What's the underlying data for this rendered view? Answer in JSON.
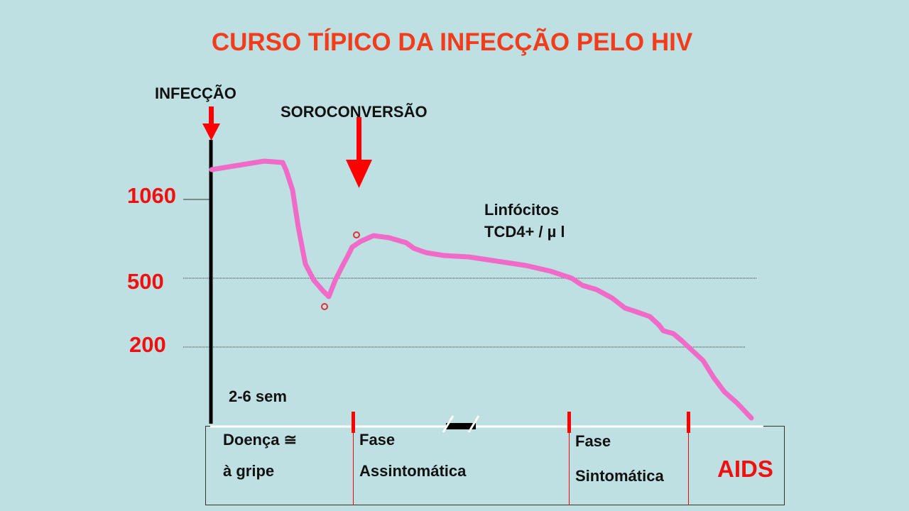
{
  "title": "CURSO TÍPICO DA INFECÇÃO PELO HIV",
  "events": {
    "infection": "INFECÇÃO",
    "seroconversion": "SOROCONVERSÃO"
  },
  "y_ticks": [
    "1060",
    "500",
    "200"
  ],
  "series_label": {
    "line1": "Linfócitos",
    "line2": "TCD4+ / µ l"
  },
  "time_label": "2-6 sem",
  "phases": {
    "phase1": {
      "line1": "Doença ≅",
      "line2": "à gripe"
    },
    "phase2": {
      "line1": "Fase",
      "line2": "Assintomática"
    },
    "phase3": {
      "line1": "Fase",
      "line2": "Sintomática"
    },
    "phase4": "AIDS"
  },
  "colors": {
    "background": "#bfe0e3",
    "title": "#f23c1c",
    "arrows": "#ff0000",
    "curve": "#f06ac8",
    "axis": "#000000"
  }
}
